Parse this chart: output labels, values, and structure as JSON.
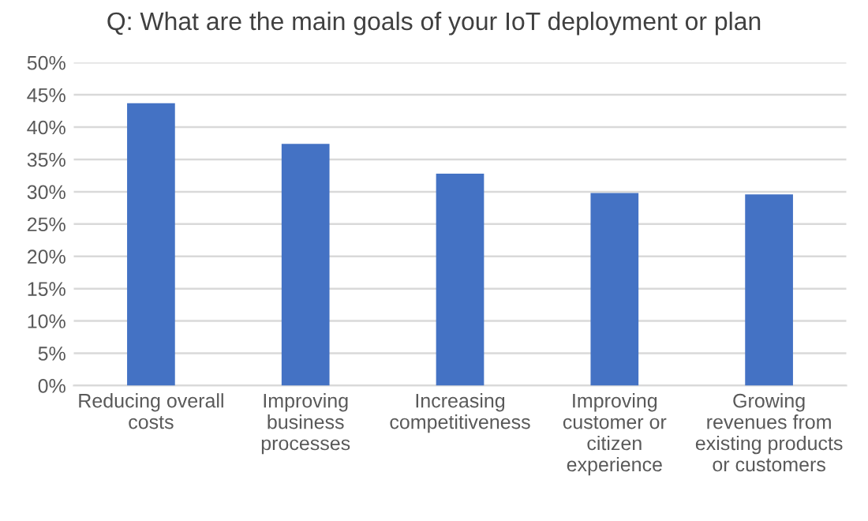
{
  "chart_data": {
    "type": "bar",
    "title": "Q: What are the main goals of your IoT deployment or plan",
    "categories": [
      "Reducing overall\ncosts",
      "Improving\nbusiness\nprocesses",
      "Increasing\ncompetitiveness",
      "Improving\ncustomer or\ncitizen\nexperience",
      "Growing\nrevenues from\nexisting products\nor customers"
    ],
    "values": [
      43.7,
      37.4,
      32.8,
      29.8,
      29.6
    ],
    "color": "#4472c4",
    "ylim": [
      0,
      50
    ],
    "yticks": [
      {
        "value": 0,
        "label": "0%"
      },
      {
        "value": 5,
        "label": "5%"
      },
      {
        "value": 10,
        "label": "10%"
      },
      {
        "value": 15,
        "label": "15%"
      },
      {
        "value": 20,
        "label": "20%"
      },
      {
        "value": 25,
        "label": "25%"
      },
      {
        "value": 30,
        "label": "30%"
      },
      {
        "value": 35,
        "label": "35%"
      },
      {
        "value": 40,
        "label": "40%"
      },
      {
        "value": 45,
        "label": "45%"
      },
      {
        "value": 50,
        "label": "50%"
      }
    ],
    "grid": "y"
  }
}
